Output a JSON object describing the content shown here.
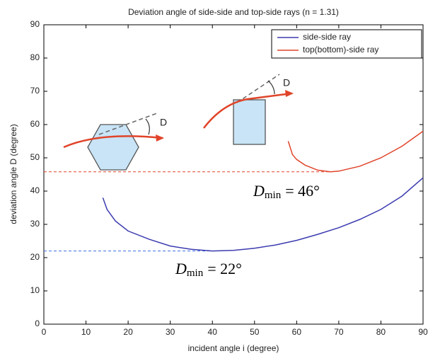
{
  "chart_data": {
    "type": "line",
    "title": "Deviation angle of side-side and top-side rays (n = 1.31)",
    "xlabel": "incident angle i (degree)",
    "ylabel": "deviation angle D (degree)",
    "xlim": [
      0,
      90
    ],
    "ylim": [
      0,
      90
    ],
    "xticks": [
      0,
      10,
      20,
      30,
      40,
      50,
      60,
      70,
      80,
      90
    ],
    "yticks": [
      0,
      10,
      20,
      30,
      40,
      50,
      60,
      70,
      80,
      90
    ],
    "legend": "upper right",
    "series": [
      {
        "name": "side-side ray",
        "color": "#3b3bb0",
        "x": [
          14,
          15,
          17,
          20,
          25,
          30,
          35,
          40,
          45,
          50,
          55,
          60,
          65,
          70,
          75,
          80,
          85,
          90
        ],
        "values": [
          38,
          34.5,
          31,
          28,
          25.5,
          23.5,
          22.5,
          22,
          22.2,
          22.8,
          23.8,
          25.2,
          27,
          29,
          31.5,
          34.5,
          38.5,
          44
        ]
      },
      {
        "name": "top(bottom)-side ray",
        "color": "#e0442a",
        "x": [
          58,
          59,
          60,
          62,
          65,
          68,
          70,
          75,
          80,
          85,
          90
        ],
        "values": [
          55,
          51,
          49.5,
          47.8,
          46.3,
          45.8,
          46,
          47.5,
          50,
          53.5,
          58
        ]
      }
    ],
    "reference_lines": [
      {
        "value": 45.8,
        "x": [
          0,
          68
        ],
        "color": "#e0442a"
      },
      {
        "value": 22,
        "x": [
          0,
          40
        ],
        "color": "#3b6fe0"
      }
    ],
    "annotations": [
      {
        "symbol": "D",
        "subscript": "min",
        "text": "= 46°"
      },
      {
        "symbol": "D",
        "subscript": "min",
        "text": "= 22°"
      }
    ],
    "diagram_labels": [
      "D",
      "D"
    ]
  }
}
